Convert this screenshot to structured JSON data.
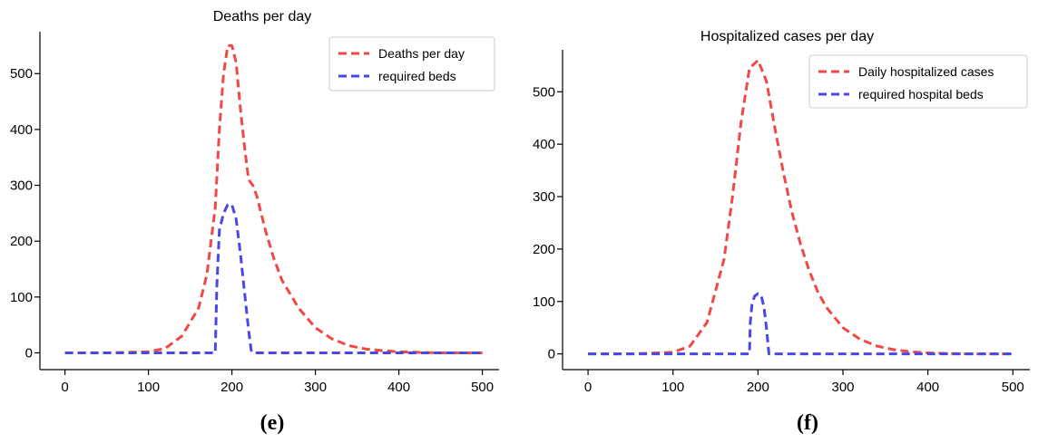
{
  "chart_data": [
    {
      "type": "line",
      "panel_label": "(e)",
      "title": "Deaths per day",
      "xlabel": "",
      "ylabel": "",
      "xlim": [
        -30,
        520
      ],
      "ylim": [
        -30,
        575
      ],
      "xticks": [
        0,
        100,
        200,
        300,
        400,
        500
      ],
      "yticks": [
        0,
        100,
        200,
        300,
        400,
        500
      ],
      "grid": false,
      "legend_position": "top-right",
      "series": [
        {
          "name": "Deaths per day",
          "color": "#f04747",
          "x": [
            0,
            50,
            100,
            120,
            140,
            160,
            170,
            180,
            185,
            190,
            195,
            200,
            205,
            210,
            215,
            220,
            225,
            230,
            240,
            250,
            260,
            280,
            300,
            320,
            340,
            360,
            380,
            400,
            420,
            450,
            500
          ],
          "y": [
            0,
            0,
            2,
            8,
            30,
            80,
            140,
            260,
            400,
            500,
            550,
            550,
            520,
            440,
            370,
            310,
            300,
            280,
            220,
            170,
            130,
            80,
            45,
            25,
            13,
            7,
            4,
            2,
            1,
            0,
            0
          ]
        },
        {
          "name": "required beds",
          "color": "#4a47e8",
          "x": [
            0,
            100,
            180,
            182,
            185,
            190,
            195,
            200,
            205,
            210,
            215,
            220,
            223,
            225,
            230,
            300,
            400,
            500
          ],
          "y": [
            0,
            0,
            0,
            120,
            220,
            250,
            265,
            265,
            240,
            180,
            110,
            40,
            5,
            0,
            0,
            0,
            0,
            0
          ]
        }
      ]
    },
    {
      "type": "line",
      "panel_label": "(f)",
      "title": "Hospitalized cases per day",
      "xlabel": "",
      "ylabel": "",
      "xlim": [
        -30,
        520
      ],
      "ylim": [
        -30,
        580
      ],
      "xticks": [
        0,
        100,
        200,
        300,
        400,
        500
      ],
      "yticks": [
        0,
        100,
        200,
        300,
        400,
        500
      ],
      "grid": false,
      "legend_position": "top-right",
      "series": [
        {
          "name": "Daily hospitalized cases",
          "color": "#f04747",
          "x": [
            0,
            50,
            100,
            120,
            140,
            160,
            170,
            180,
            190,
            200,
            210,
            220,
            230,
            240,
            250,
            260,
            270,
            280,
            300,
            320,
            340,
            360,
            380,
            400,
            420,
            450,
            500
          ],
          "y": [
            0,
            0,
            3,
            15,
            60,
            180,
            300,
            440,
            545,
            560,
            520,
            430,
            345,
            270,
            210,
            160,
            120,
            90,
            50,
            28,
            15,
            8,
            4,
            2,
            1,
            0,
            0
          ]
        },
        {
          "name": "required hospital beds",
          "color": "#4a47e8",
          "x": [
            0,
            100,
            190,
            191,
            193,
            196,
            200,
            204,
            207,
            210,
            212,
            213,
            300,
            400,
            500
          ],
          "y": [
            0,
            0,
            0,
            60,
            95,
            110,
            115,
            110,
            90,
            50,
            15,
            0,
            0,
            0,
            0
          ]
        }
      ]
    }
  ]
}
